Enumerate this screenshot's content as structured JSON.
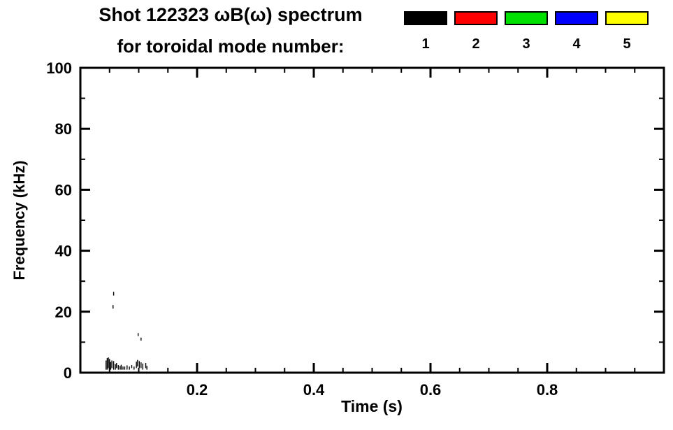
{
  "header": {
    "title_line1": "Shot 122323 ωB(ω) spectrum",
    "title_line2": "for toroidal mode number:"
  },
  "legend": {
    "entries": [
      {
        "label": "1",
        "color": "#000000"
      },
      {
        "label": "2",
        "color": "#ff0000"
      },
      {
        "label": "3",
        "color": "#00e000"
      },
      {
        "label": "4",
        "color": "#0000ff"
      },
      {
        "label": "5",
        "color": "#ffff00"
      }
    ]
  },
  "chart_data": {
    "type": "scatter",
    "title": "Shot 122323 ωB(ω) spectrum for toroidal mode number: 1 2 3 4 5",
    "xlabel": "Time (s)",
    "ylabel": "Frequency (kHz)",
    "xlim": [
      0,
      1.0
    ],
    "ylim": [
      0,
      100
    ],
    "x_ticks": [
      0.2,
      0.4,
      0.6,
      0.8
    ],
    "x_tick_labels": [
      "0.2",
      "0.4",
      "0.6",
      "0.8"
    ],
    "x_minor_step": 0.05,
    "y_ticks": [
      0,
      20,
      40,
      60,
      80,
      100
    ],
    "y_tick_labels": [
      "0",
      "20",
      "40",
      "60",
      "80",
      "100"
    ],
    "y_minor_step": 10,
    "grid": false,
    "legend_position": "top-right",
    "series": [
      {
        "name": "n=1",
        "mode_number": 1,
        "color": "#000000",
        "segments": [
          [
            0.044,
            1.0,
            4.0
          ],
          [
            0.046,
            1.0,
            4.8
          ],
          [
            0.048,
            1.5,
            5.0
          ],
          [
            0.05,
            1.0,
            4.5
          ],
          [
            0.052,
            1.0,
            3.5
          ],
          [
            0.054,
            1.5,
            4.0
          ],
          [
            0.056,
            21.0,
            22.2
          ],
          [
            0.057,
            25.3,
            26.5
          ],
          [
            0.057,
            1.0,
            3.8
          ],
          [
            0.06,
            1.0,
            2.8
          ],
          [
            0.062,
            1.5,
            3.2
          ],
          [
            0.065,
            1.0,
            2.5
          ],
          [
            0.068,
            1.0,
            2.2
          ],
          [
            0.07,
            1.0,
            2.6
          ],
          [
            0.073,
            1.0,
            2.0
          ],
          [
            0.076,
            1.0,
            2.0
          ],
          [
            0.08,
            1.0,
            2.4
          ],
          [
            0.084,
            1.0,
            2.0
          ],
          [
            0.088,
            1.5,
            2.5
          ],
          [
            0.092,
            1.0,
            2.0
          ],
          [
            0.096,
            1.5,
            3.6
          ],
          [
            0.098,
            2.0,
            4.2
          ],
          [
            0.099,
            12.0,
            13.0
          ],
          [
            0.101,
            1.5,
            3.8
          ],
          [
            0.104,
            10.5,
            11.5
          ],
          [
            0.104,
            1.5,
            3.4
          ],
          [
            0.107,
            1.0,
            3.0
          ],
          [
            0.112,
            1.5,
            3.2
          ],
          [
            0.114,
            1.0,
            2.2
          ]
        ]
      },
      {
        "name": "n=2",
        "mode_number": 2,
        "color": "#ff0000",
        "segments": []
      },
      {
        "name": "n=3",
        "mode_number": 3,
        "color": "#00e000",
        "segments": []
      },
      {
        "name": "n=4",
        "mode_number": 4,
        "color": "#0000ff",
        "segments": []
      },
      {
        "name": "n=5",
        "mode_number": 5,
        "color": "#ffff00",
        "segments": []
      }
    ]
  }
}
